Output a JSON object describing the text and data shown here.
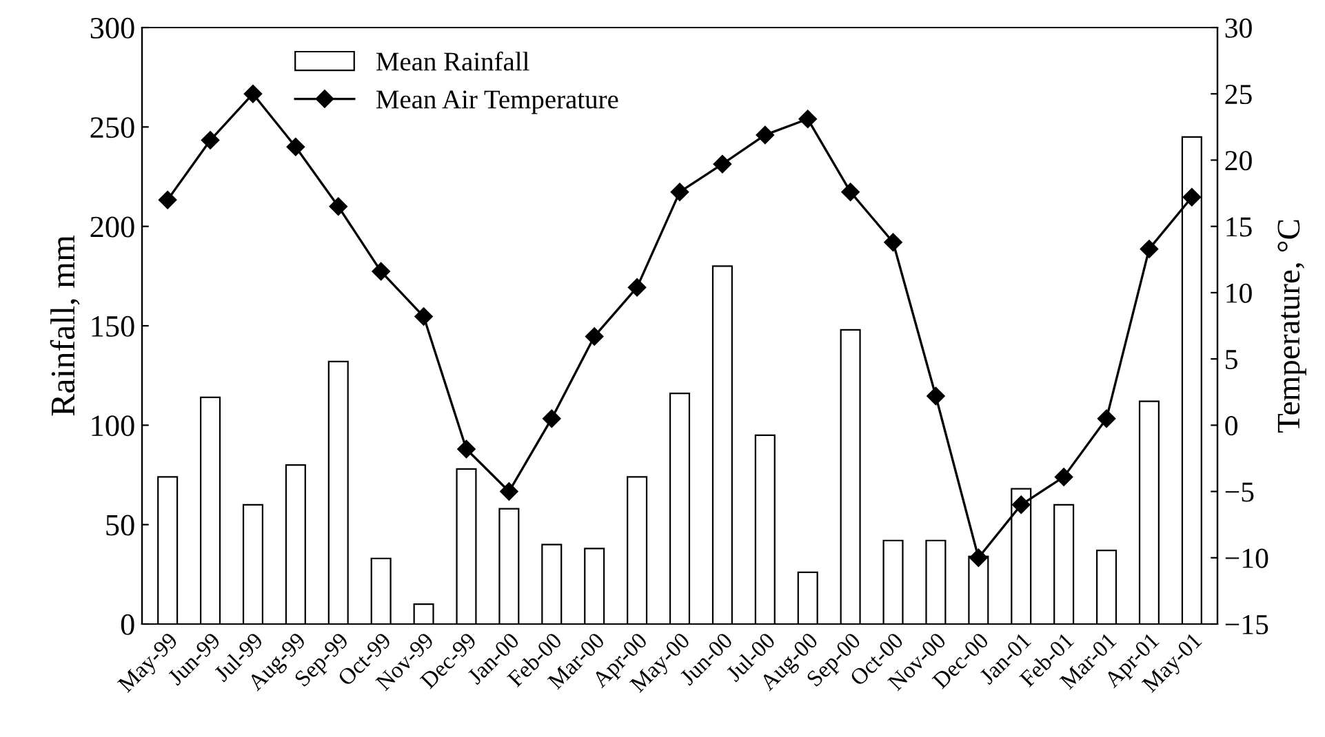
{
  "chart_data": {
    "type": "bar",
    "ylabel": "Rainfall, mm",
    "y2label": "Temperature, °C",
    "categories": [
      "May-99",
      "Jun-99",
      "Jul-99",
      "Aug-99",
      "Sep-99",
      "Oct-99",
      "Nov-99",
      "Dec-99",
      "Jan-00",
      "Feb-00",
      "Mar-00",
      "Apr-00",
      "May-00",
      "Jun-00",
      "Jul-00",
      "Aug-00",
      "Sep-00",
      "Oct-00",
      "Nov-00",
      "Dec-00",
      "Jan-01",
      "Feb-01",
      "Mar-01",
      "Apr-01",
      "May-01"
    ],
    "series": [
      {
        "name": "Mean Rainfall",
        "color": "#ffffff",
        "values": [
          74,
          114,
          60,
          80,
          132,
          33,
          10,
          78,
          58,
          40,
          38,
          74,
          116,
          180,
          95,
          26,
          148,
          42,
          42,
          34,
          68,
          60,
          37,
          112,
          245
        ]
      },
      {
        "name": "Mean Air Temperature",
        "type": "line",
        "axis": "y2",
        "color": "#000000",
        "marker": "diamond",
        "values": [
          17,
          21.5,
          25,
          21,
          16.5,
          11.6,
          8.2,
          -1.8,
          -5,
          0.5,
          6.7,
          10.4,
          17.6,
          19.7,
          21.9,
          23.1,
          17.6,
          13.8,
          2.2,
          -10,
          -6,
          -3.9,
          0.5,
          13.3,
          17.2
        ]
      }
    ],
    "ylim": [
      0,
      300
    ],
    "yticks": [
      0,
      50,
      100,
      150,
      200,
      250,
      300
    ],
    "y2lim": [
      -15,
      30
    ],
    "y2ticks": [
      -15,
      -10,
      -5,
      0,
      5,
      10,
      15,
      20,
      25,
      30
    ],
    "grid": false,
    "legend": "top left"
  }
}
